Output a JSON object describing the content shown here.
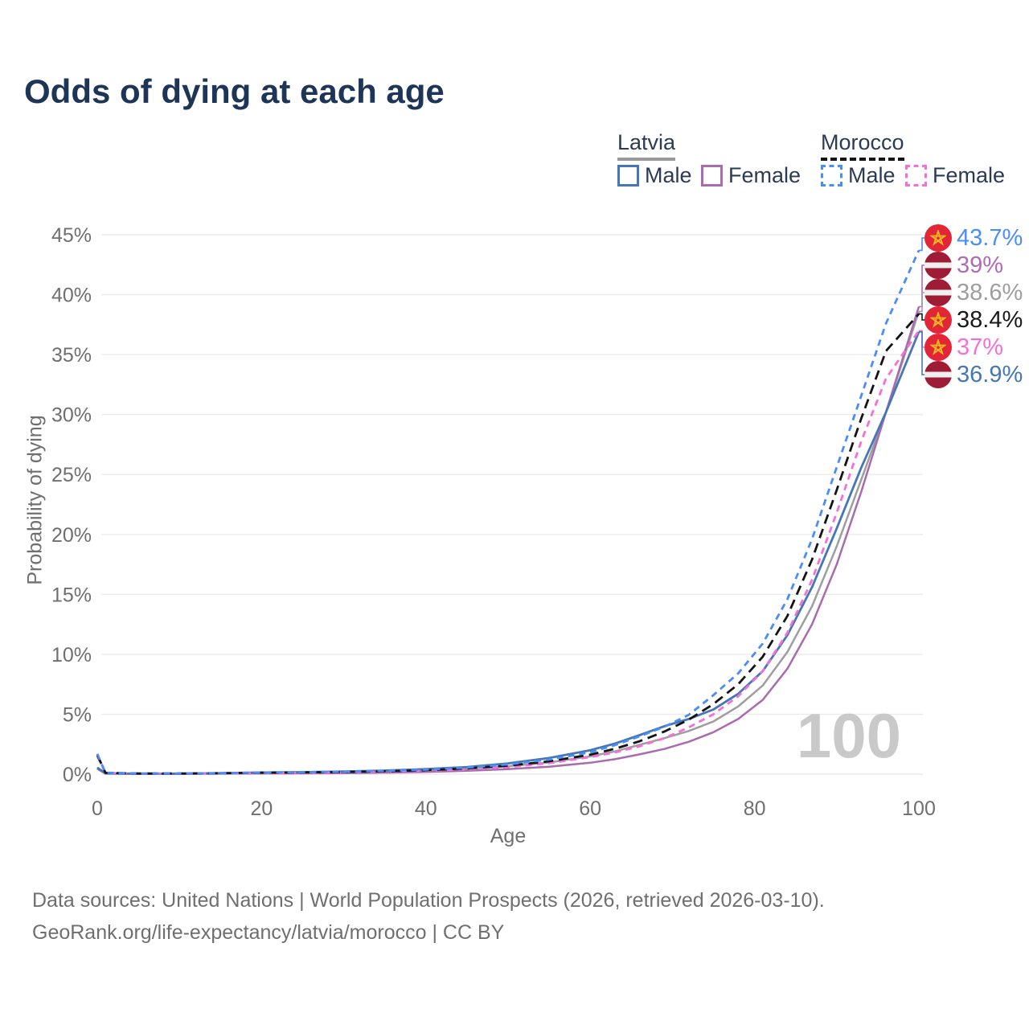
{
  "title": "Odds of dying at each age",
  "watermark": "100",
  "legend": {
    "groups": [
      {
        "label": "Latvia",
        "underline": "solid",
        "underline_color": "#9a9a9a",
        "items": [
          {
            "label": "Male",
            "color": "#4577b6",
            "dash": "solid"
          },
          {
            "label": "Female",
            "color": "#a86cae",
            "dash": "solid"
          }
        ]
      },
      {
        "label": "Morocco",
        "underline": "dashed",
        "underline_color": "#141414",
        "items": [
          {
            "label": "Male",
            "color": "#4b8df8",
            "dash": "dashed"
          },
          {
            "label": "Female",
            "color": "#f56fd9",
            "dash": "dashed"
          }
        ]
      }
    ]
  },
  "footer": {
    "line1": "Data sources: United Nations | World Population Prospects (2026, retrieved 2026-03-10).",
    "line2": "GeoRank.org/life-expectancy/latvia/morocco | CC BY"
  },
  "colors": {
    "title_text": "#1d3557",
    "legend_text": "#2b3b55",
    "axis_text": "#6f6f6f",
    "grid": "#ebebeb",
    "watermark": "#c9c9c9",
    "morocco_flag_red": "#e22638",
    "morocco_star_gold": "#f5b81f",
    "latvia_flag_carmine": "#9e1c35"
  },
  "chart_data": {
    "type": "line",
    "title": "Odds of dying at each age",
    "xlabel": "Age",
    "ylabel": "Probability of dying",
    "xlim": [
      0,
      100
    ],
    "ylim": [
      0,
      45
    ],
    "grid": "horizontal-only",
    "legend_position": "top-right",
    "x_ticks": [
      0,
      20,
      40,
      60,
      80,
      100
    ],
    "y_ticks": [
      0,
      5,
      10,
      15,
      20,
      25,
      30,
      35,
      40,
      45
    ],
    "y_tick_labels": [
      "0%",
      "5%",
      "10%",
      "15%",
      "20%",
      "25%",
      "30%",
      "35%",
      "40%",
      "45%"
    ],
    "ages": [
      0,
      1,
      5,
      10,
      15,
      20,
      25,
      30,
      35,
      40,
      45,
      50,
      55,
      60,
      63,
      66,
      69,
      72,
      75,
      78,
      81,
      84,
      87,
      90,
      93,
      96,
      100
    ],
    "series": [
      {
        "name": "Latvia total",
        "country": "Latvia",
        "color": "#9e9e9e",
        "dash": "solid",
        "width": 2.5,
        "values": [
          0.5,
          0.055,
          0.035,
          0.035,
          0.06,
          0.1,
          0.12,
          0.15,
          0.21,
          0.3,
          0.44,
          0.66,
          0.98,
          1.48,
          1.9,
          2.45,
          3.0,
          3.6,
          4.4,
          5.65,
          7.4,
          10.2,
          14.0,
          19.0,
          24.6,
          30.2,
          38.6
        ]
      },
      {
        "name": "Latvia female",
        "country": "Latvia",
        "color": "#a86cae",
        "dash": "solid",
        "width": 2.5,
        "values": [
          0.45,
          0.05,
          0.03,
          0.03,
          0.04,
          0.06,
          0.07,
          0.09,
          0.13,
          0.19,
          0.28,
          0.42,
          0.62,
          0.95,
          1.25,
          1.65,
          2.1,
          2.7,
          3.5,
          4.6,
          6.2,
          8.8,
          12.5,
          17.5,
          23.6,
          30.2,
          39.0
        ]
      },
      {
        "name": "Latvia male",
        "country": "Latvia",
        "color": "#4577b6",
        "dash": "solid",
        "width": 2.8,
        "values": [
          0.55,
          0.06,
          0.04,
          0.04,
          0.08,
          0.14,
          0.17,
          0.22,
          0.3,
          0.42,
          0.6,
          0.9,
          1.35,
          2.0,
          2.55,
          3.25,
          4.0,
          4.6,
          5.4,
          6.7,
          8.6,
          11.6,
          15.6,
          20.5,
          25.6,
          30.2,
          36.9
        ]
      },
      {
        "name": "Morocco female",
        "country": "Morocco",
        "color": "#f56fd9",
        "dash": "dashed",
        "dash_pattern": "8 6",
        "width": 2.8,
        "values": [
          1.5,
          0.11,
          0.05,
          0.05,
          0.07,
          0.1,
          0.12,
          0.15,
          0.2,
          0.28,
          0.4,
          0.6,
          0.92,
          1.42,
          1.82,
          2.32,
          3.0,
          3.9,
          5.0,
          6.5,
          8.6,
          11.8,
          16.2,
          21.8,
          27.8,
          33.0,
          37.0
        ]
      },
      {
        "name": "Morocco total",
        "country": "Morocco",
        "color": "#141414",
        "dash": "dashed",
        "dash_pattern": "12 7",
        "width": 2.8,
        "values": [
          1.6,
          0.115,
          0.055,
          0.055,
          0.08,
          0.12,
          0.145,
          0.18,
          0.24,
          0.33,
          0.48,
          0.71,
          1.07,
          1.62,
          2.12,
          2.74,
          3.55,
          4.55,
          5.85,
          7.5,
          9.8,
          13.2,
          17.9,
          23.7,
          29.7,
          35.3,
          38.4
        ]
      },
      {
        "name": "Morocco male",
        "country": "Morocco",
        "color": "#4b8df8",
        "dash": "dashed",
        "dash_pattern": "8 6",
        "width": 2.8,
        "values": [
          1.7,
          0.12,
          0.06,
          0.06,
          0.09,
          0.14,
          0.17,
          0.21,
          0.28,
          0.38,
          0.55,
          0.82,
          1.22,
          1.82,
          2.42,
          3.15,
          3.95,
          4.95,
          6.6,
          8.4,
          10.9,
          14.6,
          19.6,
          25.6,
          31.6,
          37.6,
          43.7
        ]
      }
    ],
    "end_labels": [
      {
        "text": "43.7%",
        "value": 43.7,
        "color": "#4b8df8",
        "flag": "morocco",
        "series": "Morocco male"
      },
      {
        "text": "39%",
        "value": 39.0,
        "color": "#ad6cb4",
        "flag": "latvia",
        "series": "Latvia female"
      },
      {
        "text": "38.6%",
        "value": 38.6,
        "color": "#9e9e9e",
        "flag": "latvia",
        "series": "Latvia total"
      },
      {
        "text": "38.4%",
        "value": 38.4,
        "color": "#1a1a1a",
        "flag": "morocco",
        "series": "Morocco total"
      },
      {
        "text": "37%",
        "value": 37.0,
        "color": "#f56fd9",
        "flag": "morocco",
        "series": "Morocco female"
      },
      {
        "text": "36.9%",
        "value": 36.9,
        "color": "#4577b6",
        "flag": "latvia",
        "series": "Latvia male"
      }
    ]
  }
}
